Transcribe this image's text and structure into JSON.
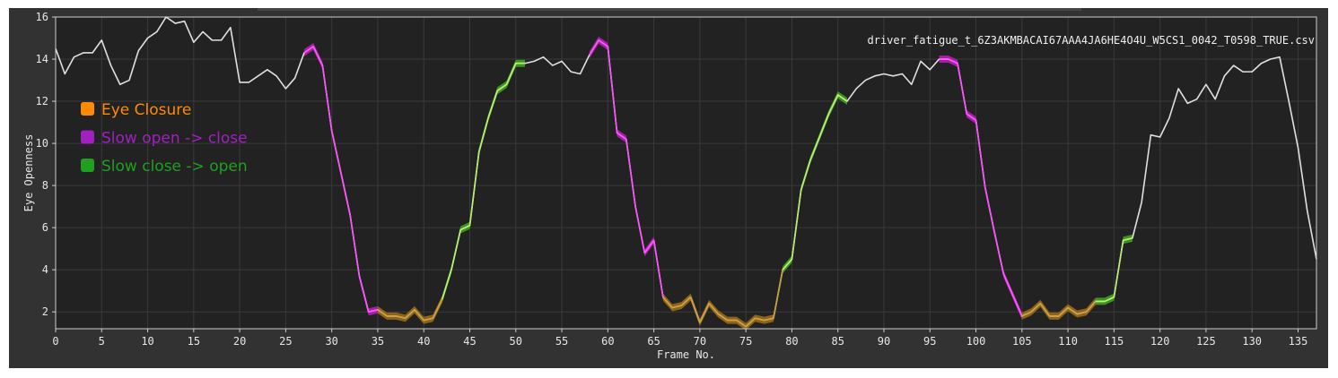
{
  "chart_data": {
    "type": "line",
    "file_label": "driver_fatigue_t_6Z3AKMBACAI67AAA4JA6HE4O4U_W5CS1_0042_T0598_TRUE.csv",
    "xlabel": "Frame No.",
    "ylabel": "Eye Openness",
    "xlim": [
      0,
      137
    ],
    "ylim": [
      1.2,
      16
    ],
    "x_ticks": [
      "0",
      "5",
      "10",
      "15",
      "20",
      "25",
      "30",
      "35",
      "40",
      "45",
      "50",
      "55",
      "60",
      "65",
      "70",
      "75",
      "80",
      "85",
      "90",
      "95",
      "100",
      "105",
      "110",
      "115",
      "120",
      "125",
      "130",
      "135"
    ],
    "y_ticks": [
      "2",
      "4",
      "6",
      "8",
      "10",
      "12",
      "14",
      "16"
    ],
    "grid": true,
    "legend_position": "upper-left",
    "legend": [
      {
        "label": "Eye Closure",
        "color": "#ff8c00"
      },
      {
        "label": "Slow open -> close",
        "color": "#a020c0"
      },
      {
        "label": "Slow close -> open",
        "color": "#20a020"
      }
    ],
    "colors": {
      "background": "#222222",
      "grid": "#3a3a3a",
      "base_line": "#e0e0e0",
      "closure_line": "#c8a040",
      "closure_band": "#9a6a18",
      "open_close_line": "#ff50ff",
      "open_close_band": "#b020b0",
      "close_open_line": "#b8f070",
      "close_open_band": "#40a020"
    },
    "series": [
      {
        "x": [
          0,
          1,
          2,
          3,
          4,
          5,
          6,
          7,
          8,
          9,
          10,
          11,
          12,
          13,
          14,
          15,
          16,
          17,
          18,
          19,
          20,
          21,
          22,
          23,
          24,
          25,
          26,
          27,
          28,
          29,
          30,
          31,
          32,
          33,
          34,
          35,
          36,
          37,
          38,
          39,
          40,
          41,
          42,
          43,
          44,
          45,
          46,
          47,
          48,
          49,
          50,
          51,
          52,
          53,
          54,
          55,
          56,
          57,
          58,
          59,
          60,
          61,
          62,
          63,
          64,
          65,
          66,
          67,
          68,
          69,
          70,
          71,
          72,
          73,
          74,
          75,
          76,
          77,
          78,
          79,
          80,
          81,
          82,
          83,
          84,
          85,
          86,
          87,
          88,
          89,
          90,
          91,
          92,
          93,
          94,
          95,
          96,
          97,
          98,
          99,
          100,
          101,
          102,
          103,
          104,
          105,
          106,
          107,
          108,
          109,
          110,
          111,
          112,
          113,
          114,
          115,
          116,
          117,
          118,
          119,
          120,
          121,
          122,
          123,
          124,
          125,
          126,
          127,
          128,
          129,
          130,
          131,
          132,
          133,
          134,
          135,
          136,
          137
        ],
        "values": [
          14.5,
          13.3,
          14.1,
          14.3,
          14.3,
          14.9,
          13.7,
          12.8,
          13.0,
          14.4,
          15.0,
          15.3,
          16.0,
          15.7,
          15.8,
          14.8,
          15.3,
          14.9,
          14.9,
          15.5,
          12.9,
          12.9,
          13.2,
          13.5,
          13.2,
          12.6,
          13.1,
          14.3,
          14.6,
          13.7,
          10.6,
          8.6,
          6.6,
          3.7,
          2.0,
          2.1,
          1.8,
          1.8,
          1.7,
          2.1,
          1.6,
          1.7,
          2.6,
          4.0,
          5.9,
          6.1,
          9.6,
          11.2,
          12.5,
          12.8,
          13.8,
          13.8,
          13.9,
          14.1,
          13.7,
          13.9,
          13.4,
          13.3,
          14.2,
          14.9,
          14.6,
          10.5,
          10.2,
          7.0,
          4.8,
          5.4,
          2.7,
          2.2,
          2.3,
          2.7,
          1.5,
          2.4,
          1.9,
          1.6,
          1.6,
          1.3,
          1.7,
          1.6,
          1.7,
          4.0,
          4.5,
          7.8,
          9.2,
          10.3,
          11.4,
          12.3,
          12.0,
          12.6,
          13.0,
          13.2,
          13.3,
          13.2,
          13.3,
          12.8,
          13.9,
          13.5,
          14.0,
          14.0,
          13.8,
          11.4,
          11.1,
          7.9,
          5.8,
          3.8,
          2.8,
          1.8,
          2.0,
          2.4,
          1.8,
          1.8,
          2.2,
          1.9,
          2.0,
          2.5,
          2.5,
          2.7,
          5.4,
          5.5,
          7.2,
          10.4,
          10.3,
          11.2,
          12.6,
          11.9,
          12.1,
          12.8,
          12.1,
          13.2,
          13.7,
          13.4,
          13.4,
          13.8,
          14.0,
          14.1,
          12.0,
          9.8,
          6.8,
          4.5
        ]
      }
    ],
    "segments": [
      {
        "type": "open_close",
        "from": 27,
        "to": 35
      },
      {
        "type": "closure",
        "from": 35,
        "to": 42
      },
      {
        "type": "close_open",
        "from": 42,
        "to": 51
      },
      {
        "type": "open_close",
        "from": 58,
        "to": 66
      },
      {
        "type": "closure",
        "from": 66,
        "to": 79
      },
      {
        "type": "close_open",
        "from": 79,
        "to": 86
      },
      {
        "type": "open_close",
        "from": 96,
        "to": 105
      },
      {
        "type": "closure",
        "from": 105,
        "to": 113
      },
      {
        "type": "close_open",
        "from": 113,
        "to": 117
      }
    ]
  }
}
